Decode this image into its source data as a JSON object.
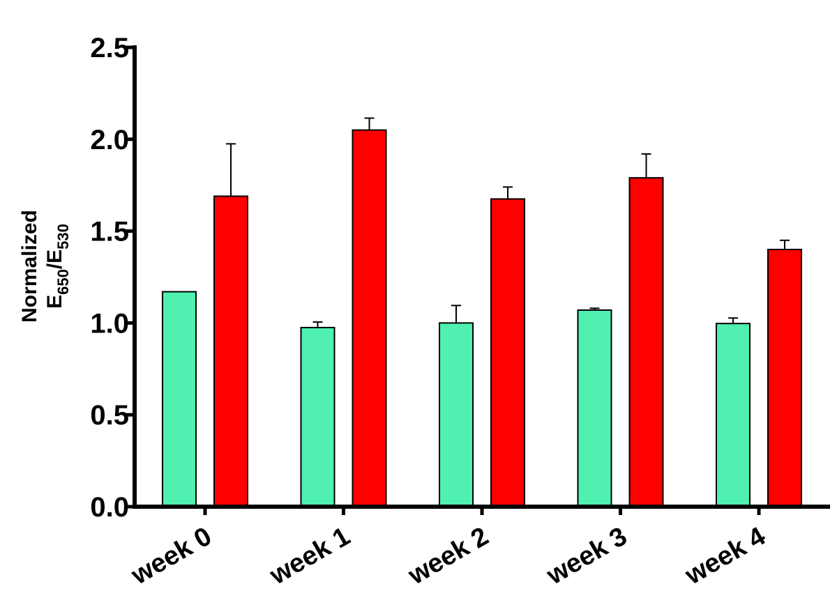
{
  "chart_data": {
    "type": "bar",
    "categories": [
      "week 0",
      "week 1",
      "week 2",
      "week 3",
      "week 4"
    ],
    "series": [
      {
        "color": "#4ff0b0",
        "values": [
          1.17,
          0.975,
          1.0,
          1.07,
          0.997
        ],
        "errors": [
          0.0,
          0.03,
          0.095,
          0.01,
          0.03
        ]
      },
      {
        "color": "#ff0000",
        "values": [
          1.69,
          2.05,
          1.675,
          1.79,
          1.4
        ],
        "errors": [
          0.285,
          0.065,
          0.065,
          0.13,
          0.05
        ]
      }
    ],
    "ylabel_line1": "Normalized",
    "ylabel_line2": {
      "base1": "E",
      "sub1": "650",
      "slash": "/",
      "base2": "E",
      "sub2": "530"
    },
    "ylim": [
      0,
      2.5
    ],
    "yticks": [
      "0.0",
      "0.5",
      "1.0",
      "1.5",
      "2.0",
      "2.5"
    ],
    "grid": false,
    "legend": "none"
  }
}
